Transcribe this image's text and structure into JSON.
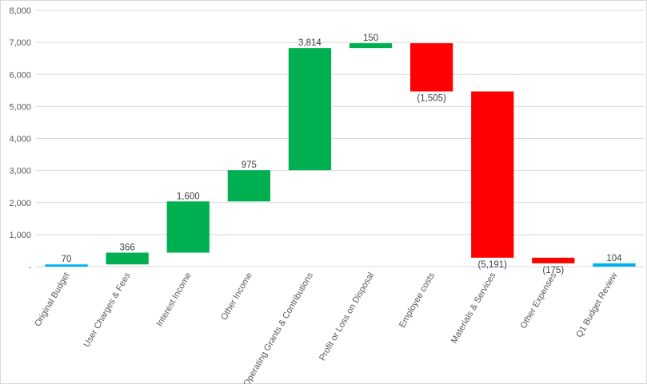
{
  "chart_data": {
    "type": "waterfall",
    "categories": [
      "Original Budget",
      "User Charges & Fees",
      "Interest Income",
      "Other Income",
      "Operating Grants & Contributions",
      "Profit or Loss on Disposal",
      "Employee costs",
      "Materials & Services",
      "Other Expenses",
      "Q1 Budget Review"
    ],
    "values": [
      70,
      366,
      1600,
      975,
      3814,
      150,
      -1505,
      -5191,
      -175,
      104
    ],
    "value_labels": [
      "70",
      "366",
      "1,600",
      "975",
      "3,814",
      "150",
      "(1,505)",
      "(5,191)",
      "(175)",
      "104"
    ],
    "measure": [
      "total",
      "relative",
      "relative",
      "relative",
      "relative",
      "relative",
      "relative",
      "relative",
      "relative",
      "total"
    ],
    "colors": [
      "#00b0f0",
      "#00b050",
      "#00b050",
      "#00b050",
      "#00b050",
      "#00b050",
      "#ff0000",
      "#ff0000",
      "#ff0000",
      "#00b0f0"
    ],
    "ylim": [
      0,
      8000
    ],
    "yticks": [
      {
        "value": 0,
        "label": "-"
      },
      {
        "value": 1000,
        "label": "1,000"
      },
      {
        "value": 2000,
        "label": "2,000"
      },
      {
        "value": 3000,
        "label": "3,000"
      },
      {
        "value": 4000,
        "label": "4,000"
      },
      {
        "value": 5000,
        "label": "5,000"
      },
      {
        "value": 6000,
        "label": "6,000"
      },
      {
        "value": 7000,
        "label": "7,000"
      },
      {
        "value": 8000,
        "label": "8,000"
      }
    ],
    "grid": true
  }
}
